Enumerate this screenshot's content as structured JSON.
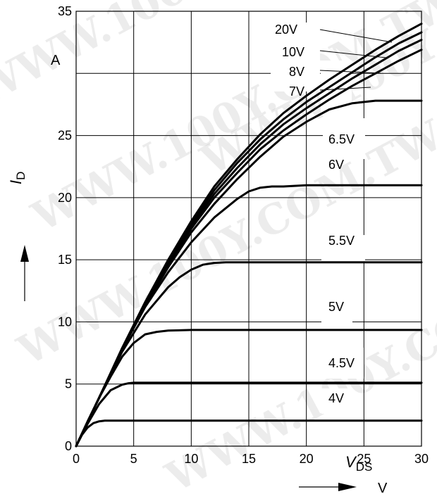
{
  "watermark": "WWW.100Y.COM.TW",
  "chart_data": {
    "type": "line",
    "title": "",
    "xlabel": "V",
    "ylabel": "I",
    "xlabel_main": "V",
    "xlabel_sub": "DS",
    "xunit": "V",
    "ylabel_main": "I",
    "ylabel_sub": "D",
    "yunit": "A",
    "xlim": [
      0,
      30
    ],
    "ylim": [
      0,
      35
    ],
    "xticks": [
      0,
      5,
      10,
      15,
      20,
      25,
      30
    ],
    "yticks": [
      0,
      5,
      10,
      15,
      20,
      25,
      35
    ],
    "grid": true,
    "series": [
      {
        "name": "4V",
        "x": [
          0,
          0.5,
          1,
          1.5,
          2,
          2.5,
          3,
          5,
          10,
          15,
          20,
          25,
          30
        ],
        "y": [
          0,
          0.9,
          1.5,
          1.85,
          2.0,
          2.05,
          2.05,
          2.05,
          2.05,
          2.05,
          2.05,
          2.05,
          2.05
        ]
      },
      {
        "name": "4.5V",
        "x": [
          0,
          1,
          2,
          3,
          4,
          4.5,
          5,
          6,
          10,
          15,
          20,
          25,
          30
        ],
        "y": [
          0,
          1.8,
          3.4,
          4.5,
          4.95,
          5.05,
          5.1,
          5.1,
          5.1,
          5.1,
          5.1,
          5.1,
          5.1
        ]
      },
      {
        "name": "5V",
        "x": [
          0,
          1,
          2,
          3,
          4,
          5,
          6,
          7,
          8,
          10,
          15,
          20,
          25,
          30
        ],
        "y": [
          0,
          2.0,
          3.9,
          5.6,
          7.2,
          8.3,
          9.0,
          9.2,
          9.3,
          9.35,
          9.35,
          9.35,
          9.35,
          9.35
        ]
      },
      {
        "name": "5.5V",
        "x": [
          0,
          2,
          4,
          6,
          8,
          9,
          10,
          11,
          12,
          13,
          15,
          20,
          25,
          30
        ],
        "y": [
          0,
          3.9,
          7.6,
          10.6,
          12.8,
          13.6,
          14.2,
          14.6,
          14.75,
          14.8,
          14.8,
          14.8,
          14.8,
          14.8
        ]
      },
      {
        "name": "6V",
        "x": [
          0,
          2,
          4,
          6,
          8,
          10,
          12,
          14,
          15,
          16,
          17,
          18,
          20,
          25,
          30
        ],
        "y": [
          0,
          3.9,
          7.8,
          11.2,
          14.0,
          16.4,
          18.4,
          19.9,
          20.5,
          20.8,
          20.9,
          20.9,
          21.0,
          21.0,
          21.0
        ]
      },
      {
        "name": "6.5V",
        "x": [
          0,
          2,
          4,
          6,
          8,
          10,
          12,
          14,
          16,
          18,
          20,
          22,
          24,
          26,
          27,
          28,
          30
        ],
        "y": [
          0,
          3.9,
          7.8,
          11.3,
          14.4,
          17.2,
          19.5,
          21.5,
          23.3,
          24.9,
          26.1,
          27.1,
          27.6,
          27.8,
          27.8,
          27.8,
          27.8
        ]
      },
      {
        "name": "7V",
        "x": [
          0,
          2,
          4,
          6,
          8,
          10,
          12,
          14,
          16,
          18,
          20,
          22,
          24,
          26,
          28,
          30
        ],
        "y": [
          0,
          3.9,
          7.8,
          11.4,
          14.6,
          17.5,
          20.0,
          22.0,
          23.9,
          25.4,
          26.7,
          27.9,
          29.0,
          30.0,
          31.0,
          31.9
        ]
      },
      {
        "name": "8V",
        "x": [
          0,
          2,
          4,
          6,
          8,
          10,
          12,
          14,
          16,
          18,
          20,
          22,
          24,
          26,
          28,
          30
        ],
        "y": [
          0,
          3.9,
          7.8,
          11.4,
          14.7,
          17.7,
          20.3,
          22.4,
          24.3,
          25.9,
          27.2,
          28.4,
          29.6,
          30.7,
          31.8,
          32.7
        ]
      },
      {
        "name": "10V",
        "x": [
          0,
          2,
          4,
          6,
          8,
          10,
          12,
          14,
          16,
          18,
          20,
          22,
          24,
          26,
          28,
          30
        ],
        "y": [
          0,
          3.9,
          7.8,
          11.5,
          14.8,
          17.9,
          20.6,
          22.8,
          24.7,
          26.3,
          27.7,
          28.9,
          30.1,
          31.3,
          32.4,
          33.3
        ]
      },
      {
        "name": "20V",
        "x": [
          0,
          2,
          4,
          6,
          8,
          10,
          12,
          14,
          16,
          18,
          20,
          22,
          24,
          26,
          28,
          30
        ],
        "y": [
          0,
          3.9,
          7.9,
          11.6,
          15.0,
          18.1,
          20.9,
          23.1,
          25.1,
          26.8,
          28.2,
          29.5,
          30.7,
          31.9,
          33.0,
          34.0
        ]
      }
    ]
  }
}
